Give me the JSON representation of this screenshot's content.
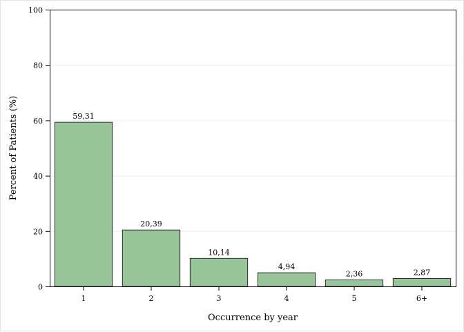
{
  "chart_data": {
    "type": "bar",
    "categories": [
      "1",
      "2",
      "3",
      "4",
      "5",
      "6+"
    ],
    "values": [
      59.31,
      20.39,
      10.14,
      4.94,
      2.36,
      2.87
    ],
    "data_labels": [
      "59,31",
      "20,39",
      "10,14",
      "4,94",
      "2,36",
      "2,87"
    ],
    "title": "",
    "xlabel": "Occurrence by year",
    "ylabel": "Percent of Patients (%)",
    "ylim": [
      0,
      100
    ],
    "yticks": [
      0,
      20,
      40,
      60,
      80,
      100
    ],
    "grid": true,
    "legend": "none",
    "colors": {
      "bar_fill": "#98c49a",
      "bar_stroke": "#2b2b2b",
      "grid": "#ededed",
      "axis": "#000000"
    }
  }
}
